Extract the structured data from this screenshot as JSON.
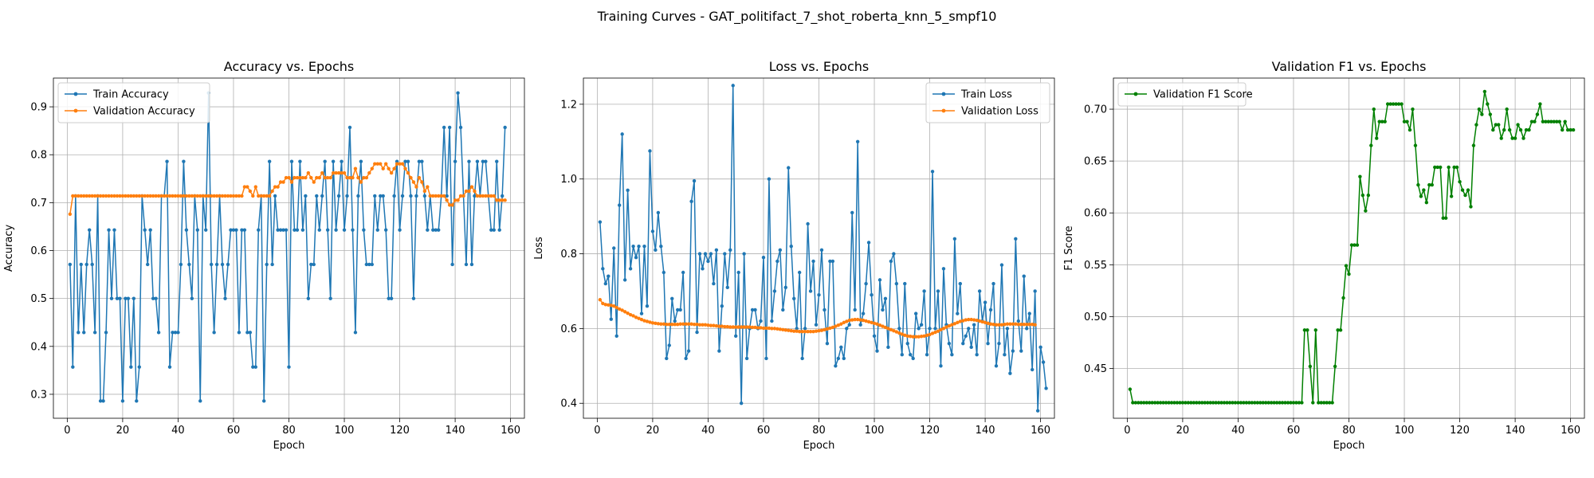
{
  "figure": {
    "title": "Training Curves - GAT_politifact_7_shot_roberta_knn_5_smpf10"
  },
  "chart_data": [
    {
      "type": "line",
      "title": "Accuracy vs. Epochs",
      "xlabel": "Epoch",
      "ylabel": "Accuracy",
      "xlim": [
        -5,
        165
      ],
      "ylim": [
        0.25,
        0.96
      ],
      "xticks": [
        "0",
        "20",
        "40",
        "60",
        "80",
        "100",
        "120",
        "140",
        "160"
      ],
      "yticks": [
        "0.3",
        "0.4",
        "0.5",
        "0.6",
        "0.7",
        "0.8",
        "0.9"
      ],
      "grid": true,
      "legend_position": "top-left",
      "series": [
        {
          "name": "Train Accuracy",
          "color": "#1f77b4",
          "marker": "circle",
          "values": [
            0.571,
            0.357,
            0.714,
            0.429,
            0.571,
            0.429,
            0.571,
            0.643,
            0.571,
            0.429,
            0.714,
            0.286,
            0.286,
            0.429,
            0.643,
            0.5,
            0.643,
            0.5,
            0.5,
            0.286,
            0.5,
            0.5,
            0.357,
            0.5,
            0.286,
            0.357,
            0.714,
            0.643,
            0.571,
            0.643,
            0.5,
            0.5,
            0.429,
            0.714,
            0.714,
            0.786,
            0.357,
            0.429,
            0.429,
            0.429,
            0.571,
            0.786,
            0.643,
            0.571,
            0.5,
            0.714,
            0.643,
            0.286,
            0.714,
            0.643,
            0.929,
            0.571,
            0.429,
            0.571,
            0.714,
            0.571,
            0.5,
            0.571,
            0.643,
            0.643,
            0.643,
            0.429,
            0.643,
            0.643,
            0.429,
            0.429,
            0.357,
            0.357,
            0.643,
            0.714,
            0.286,
            0.571,
            0.786,
            0.571,
            0.714,
            0.643,
            0.643,
            0.643,
            0.643,
            0.357,
            0.786,
            0.643,
            0.643,
            0.786,
            0.643,
            0.714,
            0.5,
            0.571,
            0.571,
            0.714,
            0.643,
            0.714,
            0.786,
            0.643,
            0.5,
            0.786,
            0.643,
            0.714,
            0.786,
            0.643,
            0.714,
            0.857,
            0.643,
            0.429,
            0.714,
            0.786,
            0.643,
            0.571,
            0.571,
            0.571,
            0.714,
            0.643,
            0.714,
            0.714,
            0.643,
            0.5,
            0.5,
            0.714,
            0.786,
            0.643,
            0.714,
            0.786,
            0.786,
            0.714,
            0.5,
            0.714,
            0.786,
            0.786,
            0.714,
            0.643,
            0.714,
            0.643,
            0.643,
            0.643,
            0.714,
            0.857,
            0.714,
            0.857,
            0.571,
            0.786,
            0.929,
            0.857,
            0.714,
            0.571,
            0.786,
            0.571,
            0.714,
            0.786,
            0.714,
            0.786,
            0.786,
            0.714,
            0.643,
            0.643,
            0.786,
            0.643,
            0.714,
            0.857
          ]
        },
        {
          "name": "Validation Accuracy",
          "color": "#ff7f0e",
          "marker": "circle",
          "values": [
            0.676,
            0.714,
            0.714,
            0.714,
            0.714,
            0.714,
            0.714,
            0.714,
            0.714,
            0.714,
            0.714,
            0.714,
            0.714,
            0.714,
            0.714,
            0.714,
            0.714,
            0.714,
            0.714,
            0.714,
            0.714,
            0.714,
            0.714,
            0.714,
            0.714,
            0.714,
            0.714,
            0.714,
            0.714,
            0.714,
            0.714,
            0.714,
            0.714,
            0.714,
            0.714,
            0.714,
            0.714,
            0.714,
            0.714,
            0.714,
            0.714,
            0.714,
            0.714,
            0.714,
            0.714,
            0.714,
            0.714,
            0.714,
            0.714,
            0.714,
            0.714,
            0.714,
            0.714,
            0.714,
            0.714,
            0.714,
            0.714,
            0.714,
            0.714,
            0.714,
            0.714,
            0.714,
            0.714,
            0.733,
            0.733,
            0.724,
            0.714,
            0.733,
            0.714,
            0.714,
            0.714,
            0.714,
            0.714,
            0.724,
            0.733,
            0.733,
            0.743,
            0.743,
            0.752,
            0.752,
            0.743,
            0.752,
            0.752,
            0.752,
            0.752,
            0.752,
            0.762,
            0.752,
            0.743,
            0.752,
            0.752,
            0.762,
            0.752,
            0.752,
            0.752,
            0.762,
            0.762,
            0.762,
            0.762,
            0.762,
            0.752,
            0.752,
            0.752,
            0.771,
            0.752,
            0.743,
            0.752,
            0.752,
            0.762,
            0.771,
            0.781,
            0.781,
            0.781,
            0.771,
            0.781,
            0.771,
            0.762,
            0.771,
            0.781,
            0.781,
            0.781,
            0.771,
            0.762,
            0.752,
            0.743,
            0.733,
            0.752,
            0.743,
            0.724,
            0.733,
            0.714,
            0.714,
            0.714,
            0.714,
            0.714,
            0.714,
            0.705,
            0.695,
            0.695,
            0.705,
            0.705,
            0.714,
            0.714,
            0.724,
            0.724,
            0.733,
            0.724,
            0.714,
            0.714,
            0.714,
            0.714,
            0.714,
            0.714,
            0.714,
            0.705,
            0.705,
            0.705,
            0.705
          ]
        }
      ]
    },
    {
      "type": "line",
      "title": "Loss vs. Epochs",
      "xlabel": "Epoch",
      "ylabel": "Loss",
      "xlim": [
        -5,
        165
      ],
      "ylim": [
        0.36,
        1.27
      ],
      "xticks": [
        "0",
        "20",
        "40",
        "60",
        "80",
        "100",
        "120",
        "140",
        "160"
      ],
      "yticks": [
        "0.4",
        "0.6",
        "0.8",
        "1.0",
        "1.2"
      ],
      "grid": true,
      "legend_position": "top-right",
      "series": [
        {
          "name": "Train Loss",
          "color": "#1f77b4",
          "marker": "circle",
          "values": [
            0.885,
            0.76,
            0.72,
            0.74,
            0.625,
            0.815,
            0.58,
            0.93,
            1.12,
            0.73,
            0.97,
            0.76,
            0.82,
            0.79,
            0.82,
            0.64,
            0.82,
            0.66,
            1.075,
            0.86,
            0.81,
            0.91,
            0.82,
            0.75,
            0.52,
            0.555,
            0.68,
            0.62,
            0.65,
            0.65,
            0.75,
            0.52,
            0.54,
            0.94,
            0.995,
            0.59,
            0.8,
            0.76,
            0.8,
            0.78,
            0.8,
            0.72,
            0.81,
            0.54,
            0.66,
            0.8,
            0.71,
            0.81,
            1.25,
            0.58,
            0.75,
            0.4,
            0.8,
            0.52,
            0.6,
            0.65,
            0.65,
            0.6,
            0.62,
            0.79,
            0.52,
            1.0,
            0.62,
            0.7,
            0.78,
            0.81,
            0.65,
            0.71,
            1.03,
            0.82,
            0.68,
            0.6,
            0.75,
            0.52,
            0.6,
            0.88,
            0.7,
            0.78,
            0.61,
            0.69,
            0.81,
            0.65,
            0.56,
            0.78,
            0.78,
            0.5,
            0.52,
            0.55,
            0.52,
            0.6,
            0.61,
            0.91,
            0.65,
            1.1,
            0.61,
            0.64,
            0.72,
            0.83,
            0.69,
            0.58,
            0.54,
            0.73,
            0.65,
            0.68,
            0.55,
            0.78,
            0.8,
            0.72,
            0.6,
            0.53,
            0.72,
            0.56,
            0.53,
            0.52,
            0.64,
            0.6,
            0.61,
            0.7,
            0.53,
            0.6,
            1.02,
            0.6,
            0.7,
            0.5,
            0.76,
            0.61,
            0.56,
            0.53,
            0.84,
            0.64,
            0.72,
            0.56,
            0.58,
            0.6,
            0.55,
            0.61,
            0.53,
            0.7,
            0.62,
            0.67,
            0.56,
            0.65,
            0.72,
            0.5,
            0.56,
            0.77,
            0.53,
            0.6,
            0.48,
            0.54,
            0.84,
            0.62,
            0.54,
            0.74,
            0.6,
            0.64,
            0.49,
            0.7,
            0.38,
            0.55,
            0.51,
            0.44
          ]
        },
        {
          "name": "Validation Loss",
          "color": "#ff7f0e",
          "marker": "circle",
          "values": [
            0.677,
            0.667,
            0.664,
            0.663,
            0.662,
            0.66,
            0.656,
            0.652,
            0.649,
            0.645,
            0.641,
            0.637,
            0.634,
            0.63,
            0.627,
            0.624,
            0.621,
            0.619,
            0.617,
            0.615,
            0.614,
            0.613,
            0.612,
            0.612,
            0.611,
            0.611,
            0.611,
            0.611,
            0.611,
            0.612,
            0.612,
            0.612,
            0.612,
            0.612,
            0.611,
            0.611,
            0.61,
            0.61,
            0.61,
            0.609,
            0.608,
            0.608,
            0.607,
            0.606,
            0.606,
            0.605,
            0.605,
            0.604,
            0.604,
            0.604,
            0.604,
            0.604,
            0.604,
            0.604,
            0.604,
            0.603,
            0.603,
            0.602,
            0.602,
            0.601,
            0.601,
            0.601,
            0.6,
            0.6,
            0.599,
            0.598,
            0.597,
            0.596,
            0.595,
            0.594,
            0.593,
            0.593,
            0.592,
            0.592,
            0.592,
            0.592,
            0.592,
            0.592,
            0.593,
            0.594,
            0.595,
            0.597,
            0.599,
            0.601,
            0.603,
            0.606,
            0.609,
            0.612,
            0.616,
            0.619,
            0.622,
            0.623,
            0.624,
            0.624,
            0.623,
            0.622,
            0.62,
            0.618,
            0.616,
            0.614,
            0.612,
            0.609,
            0.606,
            0.603,
            0.6,
            0.597,
            0.594,
            0.591,
            0.588,
            0.585,
            0.582,
            0.58,
            0.579,
            0.578,
            0.578,
            0.578,
            0.579,
            0.58,
            0.582,
            0.584,
            0.587,
            0.59,
            0.593,
            0.597,
            0.6,
            0.604,
            0.607,
            0.61,
            0.613,
            0.616,
            0.619,
            0.621,
            0.623,
            0.624,
            0.624,
            0.623,
            0.622,
            0.62,
            0.618,
            0.616,
            0.614,
            0.612,
            0.611,
            0.61,
            0.61,
            0.61,
            0.611,
            0.612,
            0.612,
            0.612,
            0.612,
            0.611,
            0.611,
            0.611,
            0.611,
            0.611,
            0.611,
            0.61
          ]
        }
      ]
    },
    {
      "type": "line",
      "title": "Validation F1 vs. Epochs",
      "xlabel": "Epoch",
      "ylabel": "F1 Score",
      "xlim": [
        -5,
        165
      ],
      "ylim": [
        0.402,
        0.73
      ],
      "xticks": [
        "0",
        "20",
        "40",
        "60",
        "80",
        "100",
        "120",
        "140",
        "160"
      ],
      "yticks": [
        "0.45",
        "0.50",
        "0.55",
        "0.60",
        "0.65",
        "0.70"
      ],
      "grid": true,
      "legend_position": "top-left",
      "series": [
        {
          "name": "Validation F1 Score",
          "color": "#008000",
          "marker": "circle",
          "values": [
            0.43,
            0.417,
            0.417,
            0.417,
            0.417,
            0.417,
            0.417,
            0.417,
            0.417,
            0.417,
            0.417,
            0.417,
            0.417,
            0.417,
            0.417,
            0.417,
            0.417,
            0.417,
            0.417,
            0.417,
            0.417,
            0.417,
            0.417,
            0.417,
            0.417,
            0.417,
            0.417,
            0.417,
            0.417,
            0.417,
            0.417,
            0.417,
            0.417,
            0.417,
            0.417,
            0.417,
            0.417,
            0.417,
            0.417,
            0.417,
            0.417,
            0.417,
            0.417,
            0.417,
            0.417,
            0.417,
            0.417,
            0.417,
            0.417,
            0.417,
            0.417,
            0.417,
            0.417,
            0.417,
            0.417,
            0.417,
            0.417,
            0.417,
            0.417,
            0.417,
            0.417,
            0.417,
            0.417,
            0.487,
            0.487,
            0.452,
            0.417,
            0.487,
            0.417,
            0.417,
            0.417,
            0.417,
            0.417,
            0.417,
            0.452,
            0.487,
            0.487,
            0.518,
            0.549,
            0.541,
            0.569,
            0.569,
            0.569,
            0.635,
            0.617,
            0.602,
            0.617,
            0.665,
            0.7,
            0.672,
            0.688,
            0.688,
            0.688,
            0.705,
            0.705,
            0.705,
            0.705,
            0.705,
            0.705,
            0.688,
            0.688,
            0.68,
            0.7,
            0.665,
            0.627,
            0.616,
            0.622,
            0.61,
            0.627,
            0.627,
            0.644,
            0.644,
            0.644,
            0.595,
            0.595,
            0.644,
            0.616,
            0.644,
            0.644,
            0.63,
            0.622,
            0.617,
            0.622,
            0.606,
            0.665,
            0.685,
            0.7,
            0.695,
            0.717,
            0.705,
            0.695,
            0.68,
            0.685,
            0.685,
            0.672,
            0.68,
            0.7,
            0.68,
            0.672,
            0.672,
            0.685,
            0.68,
            0.672,
            0.68,
            0.68,
            0.688,
            0.688,
            0.695,
            0.705,
            0.688,
            0.688,
            0.688,
            0.688,
            0.688,
            0.688,
            0.688,
            0.68,
            0.688,
            0.68,
            0.68,
            0.68
          ]
        }
      ]
    }
  ]
}
